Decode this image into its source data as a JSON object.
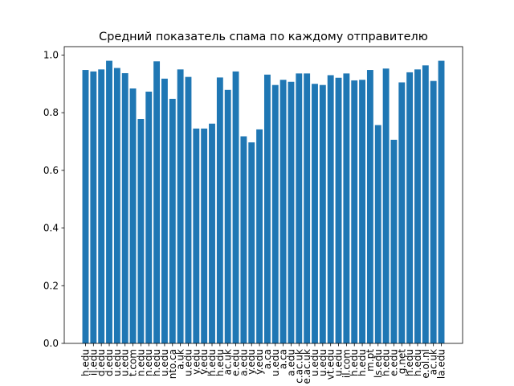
{
  "chart_data": {
    "type": "bar",
    "title": "Средний показатель спама по каждому отправителю",
    "categories": [
      "h.edu",
      "il.edu",
      "d.edu",
      "d.edu",
      "u.edu",
      "u.edu",
      "t.com",
      "n.edu",
      "n.edu",
      "h.edu",
      "u.edu",
      "nto.ca",
      "a.uk",
      "u.edu",
      "y.edu",
      "y.edu",
      "h.edu",
      "h.edu",
      "ac.uk",
      "e.edu",
      "a.edu",
      "y.edu",
      "y.edu",
      "a.ca",
      "u.edu",
      "a.ca",
      "a.edu",
      "c.ac.uk",
      "e.ac.uk",
      "u.edu",
      "u.edu",
      "vt.edu",
      "u.edu",
      "il.com",
      "h.edu",
      "h.edu",
      "m.pt",
      "ls.edu",
      "h.edu",
      "e.edu",
      "g.net",
      "h.edu",
      "h.edu",
      "e.ol.nl",
      "ac.uk",
      "la.edu"
    ],
    "values": [
      0.948,
      0.943,
      0.95,
      0.98,
      0.955,
      0.937,
      0.884,
      0.778,
      0.873,
      0.978,
      0.918,
      0.848,
      0.95,
      0.924,
      0.745,
      0.745,
      0.762,
      0.922,
      0.879,
      0.943,
      0.718,
      0.697,
      0.742,
      0.932,
      0.896,
      0.914,
      0.907,
      0.936,
      0.936,
      0.9,
      0.896,
      0.93,
      0.921,
      0.936,
      0.912,
      0.914,
      0.948,
      0.757,
      0.953,
      0.706,
      0.905,
      0.94,
      0.95,
      0.964,
      0.91,
      0.98
    ],
    "color": "#1f77b4",
    "xlim": [
      -2.69,
      47.69
    ],
    "ylim": [
      0,
      1.029
    ],
    "yticks": [
      {
        "value": 0,
        "label": "0.0"
      },
      0.2,
      0.4,
      0.6,
      0.8,
      {
        "value": 1,
        "label": "1.0"
      }
    ]
  }
}
